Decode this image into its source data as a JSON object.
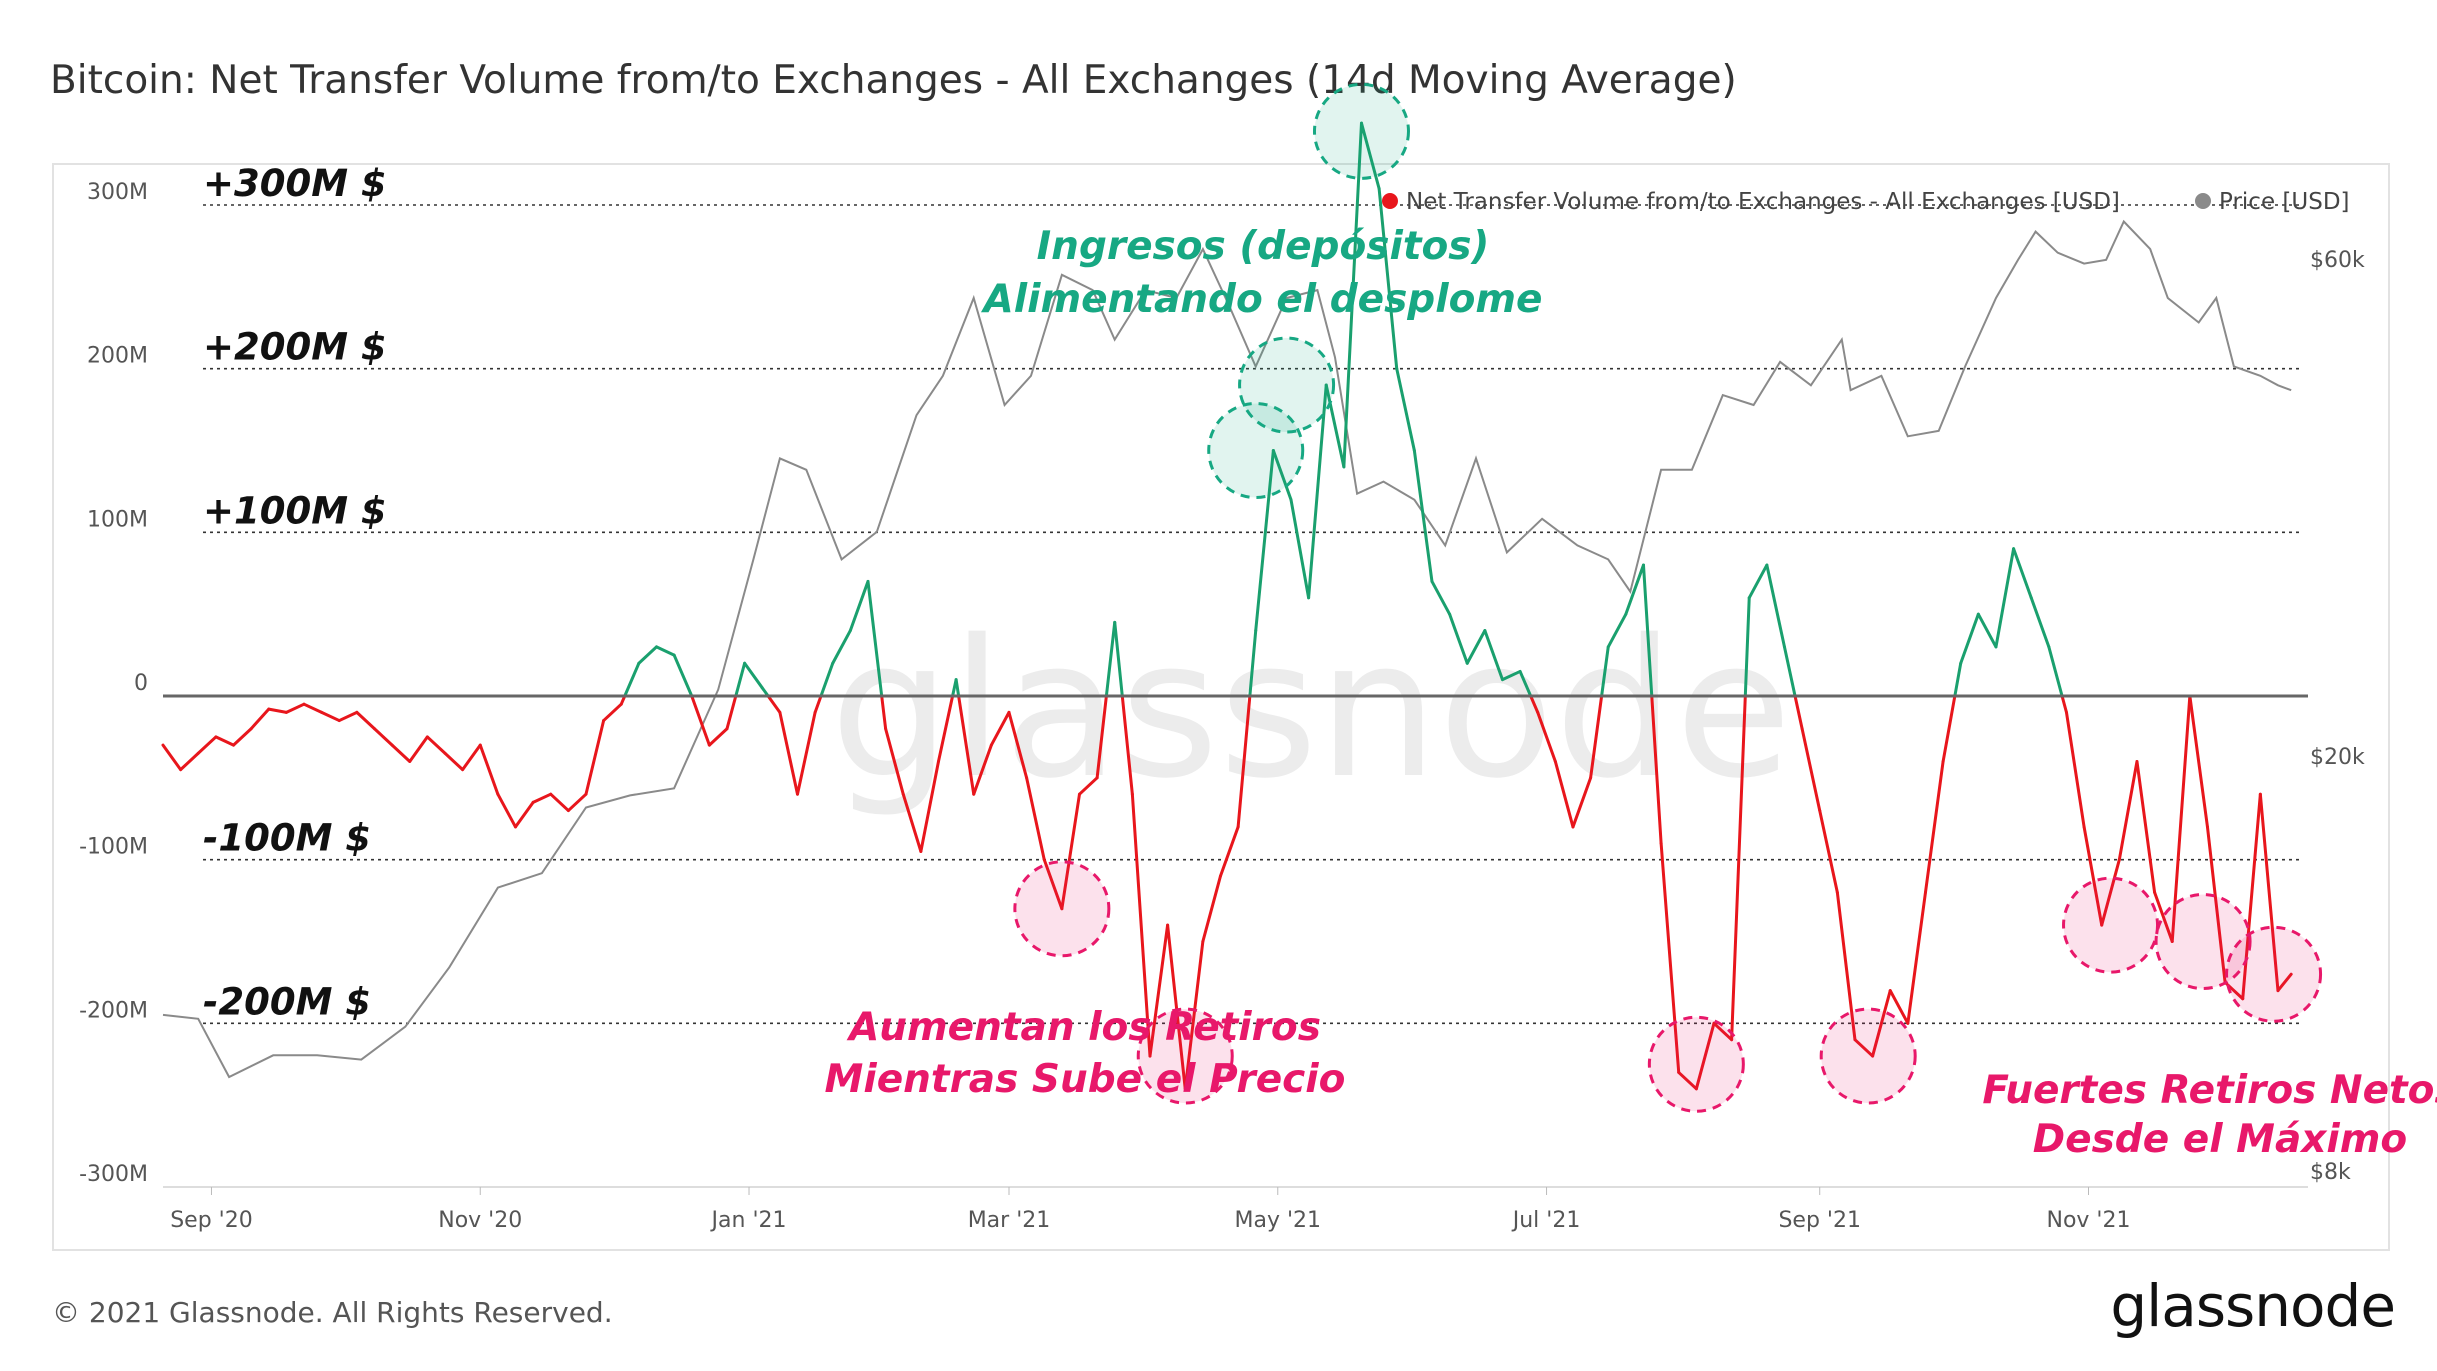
{
  "page": {
    "title": "Bitcoin: Net Transfer Volume from/to Exchanges - All Exchanges (14d Moving Average)",
    "footer": "© 2021 Glassnode. All Rights Reserved.",
    "brand": "glassnode",
    "watermark": "glassnode"
  },
  "colors": {
    "inflow": "#1aa06e",
    "outflow": "#e8161c",
    "price": "#8a8a8a",
    "zero_line": "#666666",
    "highlight_green": "#17a883",
    "highlight_pink": "#e8186a"
  },
  "chart_data": {
    "type": "line",
    "title": "Bitcoin: Net Transfer Volume from/to Exchanges - All Exchanges (14d Moving Average)",
    "x_range": [
      "2020-08-21",
      "2021-12-19"
    ],
    "x_ticks": [
      {
        "date": "2020-09-01",
        "label": "Sep '20"
      },
      {
        "date": "2020-11-01",
        "label": "Nov '20"
      },
      {
        "date": "2021-01-01",
        "label": "Jan '21"
      },
      {
        "date": "2021-03-01",
        "label": "Mar '21"
      },
      {
        "date": "2021-05-01",
        "label": "May '21"
      },
      {
        "date": "2021-07-01",
        "label": "Jul '21"
      },
      {
        "date": "2021-09-01",
        "label": "Sep '21"
      },
      {
        "date": "2021-11-01",
        "label": "Nov '21"
      }
    ],
    "y_left": {
      "label": "Net Transfer Volume [USD]",
      "range": [
        -300000000,
        300000000
      ],
      "ticks": [
        {
          "value": 300000000,
          "label": "300M"
        },
        {
          "value": 200000000,
          "label": "200M"
        },
        {
          "value": 100000000,
          "label": "100M"
        },
        {
          "value": 0,
          "label": "0"
        },
        {
          "value": -100000000,
          "label": "-100M"
        },
        {
          "value": -200000000,
          "label": "-200M"
        },
        {
          "value": -300000000,
          "label": "-300M"
        }
      ]
    },
    "y_right": {
      "label": "Price [USD]",
      "scale": "log",
      "range": [
        8000,
        70000
      ],
      "ticks": [
        {
          "value": 60000,
          "label": "$60k"
        },
        {
          "value": 20000,
          "label": "$20k"
        },
        {
          "value": 8000,
          "label": "$8k"
        }
      ]
    },
    "legend": [
      {
        "name": "Net Transfer Volume from/to Exchanges - All Exchanges [USD]",
        "color": "#e8161c"
      },
      {
        "name": "Price [USD]",
        "color": "#8a8a8a"
      }
    ],
    "legend_position": "top-right",
    "reference_lines": [
      {
        "value": 300000000,
        "label": "+300M $"
      },
      {
        "value": 200000000,
        "label": "+200M $"
      },
      {
        "value": 100000000,
        "label": "+100M $"
      },
      {
        "value": -100000000,
        "label": "-100M $"
      },
      {
        "value": -200000000,
        "label": "-200M $"
      }
    ],
    "series": [
      {
        "name": "Net Transfer Volume from/to Exchanges - All Exchanges [USD]",
        "unit": "M USD",
        "points": [
          [
            "2020-08-21",
            -30
          ],
          [
            "2020-08-25",
            -45
          ],
          [
            "2020-08-29",
            -35
          ],
          [
            "2020-09-02",
            -25
          ],
          [
            "2020-09-06",
            -30
          ],
          [
            "2020-09-10",
            -20
          ],
          [
            "2020-09-14",
            -8
          ],
          [
            "2020-09-18",
            -10
          ],
          [
            "2020-09-22",
            -5
          ],
          [
            "2020-09-26",
            -10
          ],
          [
            "2020-09-30",
            -15
          ],
          [
            "2020-10-04",
            -10
          ],
          [
            "2020-10-08",
            -20
          ],
          [
            "2020-10-12",
            -30
          ],
          [
            "2020-10-16",
            -40
          ],
          [
            "2020-10-20",
            -25
          ],
          [
            "2020-10-24",
            -35
          ],
          [
            "2020-10-28",
            -45
          ],
          [
            "2020-11-01",
            -30
          ],
          [
            "2020-11-05",
            -60
          ],
          [
            "2020-11-09",
            -80
          ],
          [
            "2020-11-13",
            -65
          ],
          [
            "2020-11-17",
            -60
          ],
          [
            "2020-11-21",
            -70
          ],
          [
            "2020-11-25",
            -60
          ],
          [
            "2020-11-29",
            -15
          ],
          [
            "2020-12-03",
            -5
          ],
          [
            "2020-12-07",
            20
          ],
          [
            "2020-12-11",
            30
          ],
          [
            "2020-12-15",
            25
          ],
          [
            "2020-12-19",
            0
          ],
          [
            "2020-12-23",
            -30
          ],
          [
            "2020-12-27",
            -20
          ],
          [
            "2020-12-31",
            20
          ],
          [
            "2021-01-04",
            5
          ],
          [
            "2021-01-08",
            -10
          ],
          [
            "2021-01-12",
            -60
          ],
          [
            "2021-01-16",
            -10
          ],
          [
            "2021-01-20",
            20
          ],
          [
            "2021-01-24",
            40
          ],
          [
            "2021-01-28",
            70
          ],
          [
            "2021-02-01",
            -20
          ],
          [
            "2021-02-05",
            -60
          ],
          [
            "2021-02-09",
            -95
          ],
          [
            "2021-02-13",
            -40
          ],
          [
            "2021-02-17",
            10
          ],
          [
            "2021-02-21",
            -60
          ],
          [
            "2021-02-25",
            -30
          ],
          [
            "2021-03-01",
            -10
          ],
          [
            "2021-03-05",
            -50
          ],
          [
            "2021-03-09",
            -100
          ],
          [
            "2021-03-13",
            -130
          ],
          [
            "2021-03-17",
            -60
          ],
          [
            "2021-03-21",
            -50
          ],
          [
            "2021-03-25",
            45
          ],
          [
            "2021-03-29",
            -60
          ],
          [
            "2021-04-02",
            -220
          ],
          [
            "2021-04-06",
            -140
          ],
          [
            "2021-04-10",
            -240
          ],
          [
            "2021-04-14",
            -150
          ],
          [
            "2021-04-18",
            -110
          ],
          [
            "2021-04-22",
            -80
          ],
          [
            "2021-04-26",
            40
          ],
          [
            "2021-04-30",
            150
          ],
          [
            "2021-05-04",
            120
          ],
          [
            "2021-05-08",
            60
          ],
          [
            "2021-05-12",
            190
          ],
          [
            "2021-05-16",
            140
          ],
          [
            "2021-05-20",
            350
          ],
          [
            "2021-05-24",
            310
          ],
          [
            "2021-05-28",
            200
          ],
          [
            "2021-06-01",
            150
          ],
          [
            "2021-06-05",
            70
          ],
          [
            "2021-06-09",
            50
          ],
          [
            "2021-06-13",
            20
          ],
          [
            "2021-06-17",
            40
          ],
          [
            "2021-06-21",
            10
          ],
          [
            "2021-06-25",
            15
          ],
          [
            "2021-06-29",
            -10
          ],
          [
            "2021-07-03",
            -40
          ],
          [
            "2021-07-07",
            -80
          ],
          [
            "2021-07-11",
            -50
          ],
          [
            "2021-07-15",
            30
          ],
          [
            "2021-07-19",
            50
          ],
          [
            "2021-07-23",
            80
          ],
          [
            "2021-07-27",
            -90
          ],
          [
            "2021-07-31",
            -230
          ],
          [
            "2021-08-04",
            -240
          ],
          [
            "2021-08-08",
            -200
          ],
          [
            "2021-08-12",
            -210
          ],
          [
            "2021-08-16",
            60
          ],
          [
            "2021-08-20",
            80
          ],
          [
            "2021-08-24",
            30
          ],
          [
            "2021-08-28",
            -20
          ],
          [
            "2021-09-01",
            -70
          ],
          [
            "2021-09-05",
            -120
          ],
          [
            "2021-09-09",
            -210
          ],
          [
            "2021-09-13",
            -220
          ],
          [
            "2021-09-17",
            -180
          ],
          [
            "2021-09-21",
            -200
          ],
          [
            "2021-09-25",
            -120
          ],
          [
            "2021-09-29",
            -40
          ],
          [
            "2021-10-03",
            20
          ],
          [
            "2021-10-07",
            50
          ],
          [
            "2021-10-11",
            30
          ],
          [
            "2021-10-15",
            90
          ],
          [
            "2021-10-19",
            60
          ],
          [
            "2021-10-23",
            30
          ],
          [
            "2021-10-27",
            -10
          ],
          [
            "2021-10-31",
            -80
          ],
          [
            "2021-11-04",
            -140
          ],
          [
            "2021-11-08",
            -100
          ],
          [
            "2021-11-12",
            -40
          ],
          [
            "2021-11-16",
            -120
          ],
          [
            "2021-11-20",
            -150
          ],
          [
            "2021-11-24",
            0
          ],
          [
            "2021-11-28",
            -80
          ],
          [
            "2021-12-02",
            -175
          ],
          [
            "2021-12-06",
            -185
          ],
          [
            "2021-12-10",
            -60
          ],
          [
            "2021-12-14",
            -180
          ],
          [
            "2021-12-17",
            -170
          ]
        ]
      },
      {
        "name": "Price [USD]",
        "unit": "USD",
        "points": [
          [
            "2020-08-21",
            11700
          ],
          [
            "2020-08-29",
            11600
          ],
          [
            "2020-09-05",
            10200
          ],
          [
            "2020-09-15",
            10700
          ],
          [
            "2020-09-25",
            10700
          ],
          [
            "2020-10-05",
            10600
          ],
          [
            "2020-10-15",
            11400
          ],
          [
            "2020-10-25",
            13000
          ],
          [
            "2020-11-05",
            15500
          ],
          [
            "2020-11-15",
            16000
          ],
          [
            "2020-11-25",
            18500
          ],
          [
            "2020-12-05",
            19000
          ],
          [
            "2020-12-15",
            19300
          ],
          [
            "2020-12-25",
            24000
          ],
          [
            "2021-01-02",
            32000
          ],
          [
            "2021-01-08",
            40000
          ],
          [
            "2021-01-14",
            39000
          ],
          [
            "2021-01-22",
            32000
          ],
          [
            "2021-01-30",
            34000
          ],
          [
            "2021-02-08",
            44000
          ],
          [
            "2021-02-14",
            48000
          ],
          [
            "2021-02-21",
            57000
          ],
          [
            "2021-02-28",
            45000
          ],
          [
            "2021-03-06",
            48000
          ],
          [
            "2021-03-13",
            60000
          ],
          [
            "2021-03-20",
            58000
          ],
          [
            "2021-03-25",
            52000
          ],
          [
            "2021-04-01",
            58000
          ],
          [
            "2021-04-08",
            57000
          ],
          [
            "2021-04-14",
            63500
          ],
          [
            "2021-04-20",
            56000
          ],
          [
            "2021-04-26",
            49000
          ],
          [
            "2021-05-03",
            57000
          ],
          [
            "2021-05-10",
            58000
          ],
          [
            "2021-05-14",
            50000
          ],
          [
            "2021-05-19",
            37000
          ],
          [
            "2021-05-25",
            38000
          ],
          [
            "2021-06-01",
            36500
          ],
          [
            "2021-06-08",
            33000
          ],
          [
            "2021-06-15",
            40000
          ],
          [
            "2021-06-22",
            32500
          ],
          [
            "2021-06-30",
            35000
          ],
          [
            "2021-07-08",
            33000
          ],
          [
            "2021-07-15",
            32000
          ],
          [
            "2021-07-20",
            29800
          ],
          [
            "2021-07-27",
            39000
          ],
          [
            "2021-08-03",
            39000
          ],
          [
            "2021-08-10",
            46000
          ],
          [
            "2021-08-17",
            45000
          ],
          [
            "2021-08-23",
            49500
          ],
          [
            "2021-08-30",
            47000
          ],
          [
            "2021-09-06",
            52000
          ],
          [
            "2021-09-08",
            46500
          ],
          [
            "2021-09-15",
            48000
          ],
          [
            "2021-09-21",
            42000
          ],
          [
            "2021-09-28",
            42500
          ],
          [
            "2021-10-04",
            49000
          ],
          [
            "2021-10-11",
            57000
          ],
          [
            "2021-10-16",
            62000
          ],
          [
            "2021-10-20",
            66000
          ],
          [
            "2021-10-25",
            63000
          ],
          [
            "2021-10-31",
            61500
          ],
          [
            "2021-11-05",
            62000
          ],
          [
            "2021-11-09",
            67500
          ],
          [
            "2021-11-15",
            63500
          ],
          [
            "2021-11-19",
            57000
          ],
          [
            "2021-11-26",
            54000
          ],
          [
            "2021-11-30",
            57000
          ],
          [
            "2021-12-04",
            49000
          ],
          [
            "2021-12-10",
            48000
          ],
          [
            "2021-12-14",
            47000
          ],
          [
            "2021-12-17",
            46500
          ]
        ]
      }
    ],
    "annotations": [
      {
        "lines": [
          "Ingresos (depósitos)",
          "Alimentando el desplome"
        ],
        "color": "#17a883"
      },
      {
        "lines": [
          "Aumentan los Retiros",
          "Mientras Sube el Precio"
        ],
        "color": "#e8186a"
      },
      {
        "lines": [
          "Fuertes Retiros Netos",
          "Desde el Máximo"
        ],
        "color": "#e8186a"
      }
    ],
    "highlights": [
      {
        "date": "2021-04-26",
        "value": 150,
        "color": "green"
      },
      {
        "date": "2021-05-03",
        "value": 190,
        "color": "green"
      },
      {
        "date": "2021-05-20",
        "value": 345,
        "color": "green"
      },
      {
        "date": "2021-03-13",
        "value": -130,
        "color": "pink"
      },
      {
        "date": "2021-04-10",
        "value": -220,
        "color": "pink"
      },
      {
        "date": "2021-08-04",
        "value": -225,
        "color": "pink"
      },
      {
        "date": "2021-09-12",
        "value": -220,
        "color": "pink"
      },
      {
        "date": "2021-11-06",
        "value": -140,
        "color": "pink"
      },
      {
        "date": "2021-11-27",
        "value": -150,
        "color": "pink"
      },
      {
        "date": "2021-12-13",
        "value": -170,
        "color": "pink"
      }
    ]
  }
}
